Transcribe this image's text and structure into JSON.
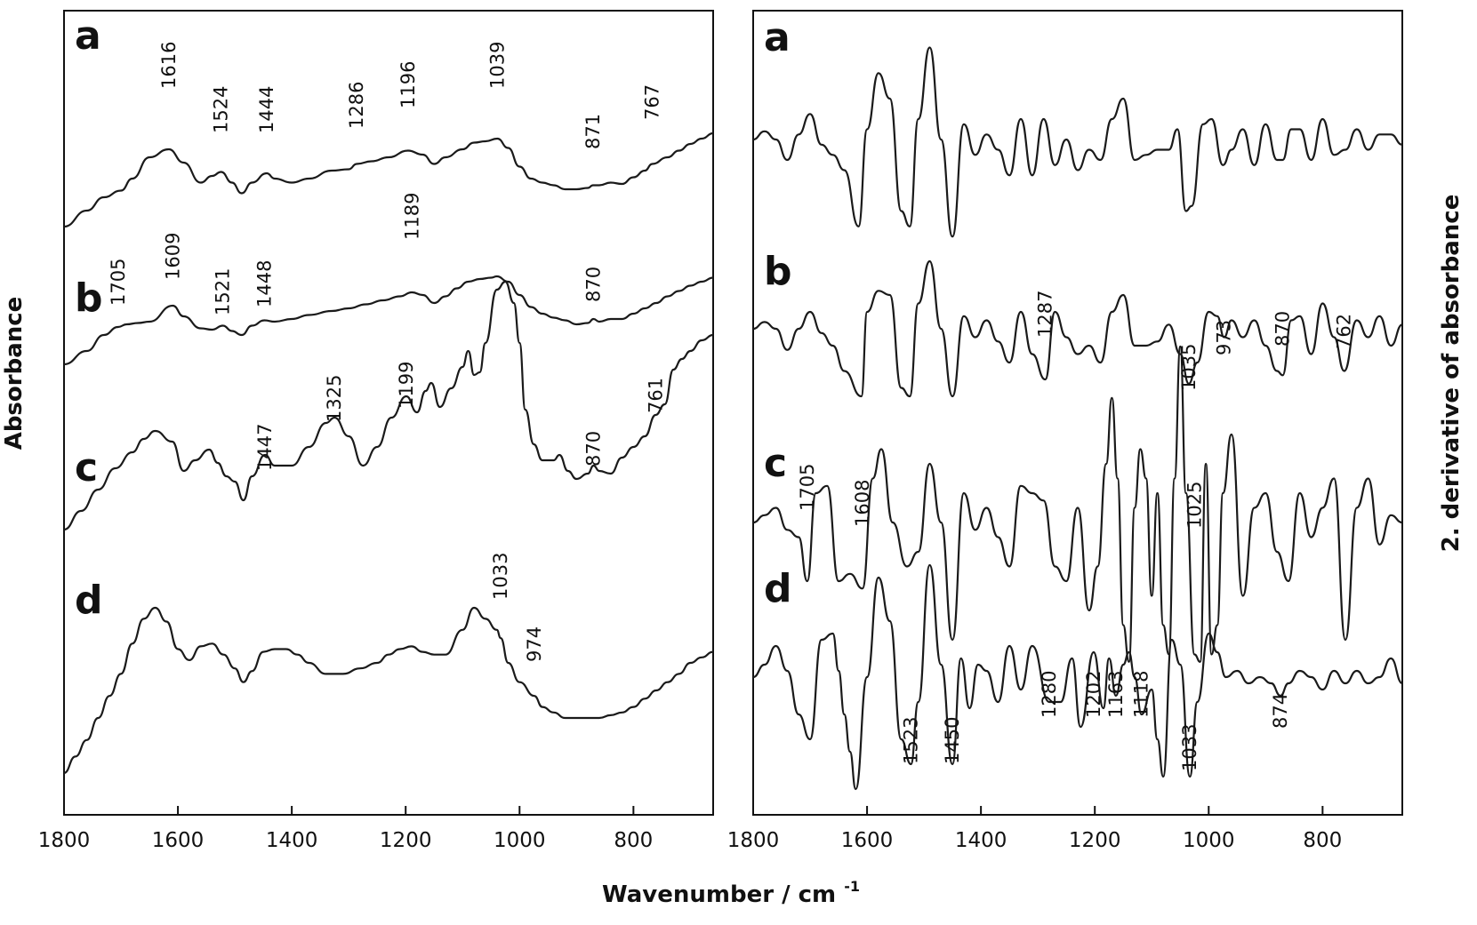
{
  "chart_data": [
    {
      "type": "line",
      "panel": "left",
      "ylabel": "Absorbance",
      "xlim": [
        1800,
        660
      ],
      "xticks": [
        1800,
        1600,
        1400,
        1200,
        1000,
        800
      ],
      "series": [
        {
          "name": "a",
          "peak_labels": [
            1616,
            1524,
            1444,
            1286,
            1196,
            1039,
            871,
            767
          ],
          "x": [
            1800,
            1760,
            1730,
            1700,
            1680,
            1650,
            1616,
            1590,
            1560,
            1540,
            1524,
            1505,
            1488,
            1470,
            1444,
            1430,
            1400,
            1370,
            1330,
            1300,
            1286,
            1260,
            1230,
            1196,
            1170,
            1150,
            1130,
            1100,
            1080,
            1060,
            1039,
            1020,
            1000,
            980,
            960,
            940,
            920,
            900,
            880,
            871,
            860,
            840,
            820,
            800,
            780,
            767,
            740,
            720,
            700,
            680,
            660
          ],
          "y": [
            0.0,
            0.12,
            0.22,
            0.27,
            0.36,
            0.52,
            0.58,
            0.48,
            0.33,
            0.38,
            0.41,
            0.33,
            0.25,
            0.33,
            0.4,
            0.36,
            0.33,
            0.36,
            0.42,
            0.43,
            0.47,
            0.49,
            0.52,
            0.57,
            0.54,
            0.47,
            0.52,
            0.58,
            0.63,
            0.64,
            0.66,
            0.59,
            0.45,
            0.36,
            0.33,
            0.31,
            0.28,
            0.28,
            0.29,
            0.31,
            0.31,
            0.33,
            0.32,
            0.37,
            0.42,
            0.47,
            0.52,
            0.57,
            0.62,
            0.66,
            0.7
          ]
        },
        {
          "name": "b",
          "peak_labels": [
            1705,
            1609,
            1521,
            1448,
            1189,
            870
          ],
          "x": [
            1800,
            1760,
            1730,
            1705,
            1690,
            1670,
            1650,
            1609,
            1590,
            1560,
            1540,
            1521,
            1505,
            1488,
            1470,
            1448,
            1430,
            1400,
            1370,
            1330,
            1300,
            1270,
            1240,
            1210,
            1189,
            1170,
            1150,
            1130,
            1110,
            1090,
            1070,
            1050,
            1040,
            1020,
            1000,
            980,
            960,
            940,
            920,
            900,
            880,
            870,
            860,
            840,
            820,
            800,
            780,
            760,
            740,
            720,
            700,
            680,
            660
          ],
          "y": [
            0.0,
            0.1,
            0.22,
            0.28,
            0.3,
            0.31,
            0.32,
            0.44,
            0.36,
            0.27,
            0.26,
            0.29,
            0.25,
            0.22,
            0.29,
            0.33,
            0.32,
            0.34,
            0.37,
            0.4,
            0.42,
            0.45,
            0.48,
            0.51,
            0.54,
            0.52,
            0.46,
            0.51,
            0.57,
            0.62,
            0.64,
            0.65,
            0.66,
            0.62,
            0.52,
            0.43,
            0.38,
            0.35,
            0.33,
            0.3,
            0.31,
            0.34,
            0.32,
            0.34,
            0.34,
            0.38,
            0.42,
            0.46,
            0.51,
            0.55,
            0.59,
            0.62,
            0.65
          ]
        },
        {
          "name": "c",
          "peak_labels": [
            1447,
            1325,
            1199,
            870,
            761
          ],
          "x": [
            1800,
            1770,
            1740,
            1710,
            1680,
            1660,
            1640,
            1610,
            1590,
            1570,
            1545,
            1530,
            1515,
            1500,
            1485,
            1470,
            1447,
            1430,
            1400,
            1370,
            1340,
            1325,
            1300,
            1275,
            1250,
            1225,
            1199,
            1180,
            1165,
            1155,
            1140,
            1120,
            1100,
            1090,
            1080,
            1070,
            1060,
            1040,
            1025,
            1010,
            1000,
            990,
            975,
            960,
            940,
            930,
            915,
            900,
            880,
            870,
            860,
            840,
            820,
            800,
            780,
            761,
            745,
            730,
            715,
            700,
            680,
            660
          ],
          "y": [
            0.0,
            0.07,
            0.15,
            0.23,
            0.29,
            0.34,
            0.37,
            0.33,
            0.22,
            0.26,
            0.3,
            0.25,
            0.2,
            0.18,
            0.11,
            0.2,
            0.28,
            0.24,
            0.24,
            0.31,
            0.4,
            0.42,
            0.35,
            0.24,
            0.31,
            0.42,
            0.5,
            0.44,
            0.52,
            0.55,
            0.46,
            0.53,
            0.61,
            0.67,
            0.58,
            0.59,
            0.7,
            0.9,
            0.93,
            0.85,
            0.7,
            0.45,
            0.32,
            0.26,
            0.26,
            0.28,
            0.22,
            0.19,
            0.21,
            0.24,
            0.22,
            0.21,
            0.27,
            0.31,
            0.35,
            0.43,
            0.47,
            0.6,
            0.64,
            0.67,
            0.71,
            0.73
          ]
        },
        {
          "name": "d",
          "peak_labels": [
            1033,
            974
          ],
          "x": [
            1800,
            1780,
            1760,
            1740,
            1720,
            1700,
            1680,
            1660,
            1640,
            1620,
            1600,
            1580,
            1560,
            1540,
            1520,
            1500,
            1485,
            1470,
            1450,
            1430,
            1410,
            1390,
            1370,
            1340,
            1310,
            1280,
            1250,
            1230,
            1210,
            1190,
            1170,
            1150,
            1130,
            1100,
            1080,
            1060,
            1040,
            1033,
            1020,
            1000,
            974,
            960,
            940,
            920,
            900,
            880,
            860,
            840,
            820,
            800,
            780,
            760,
            740,
            720,
            700,
            680,
            660
          ],
          "y": [
            0.0,
            0.06,
            0.12,
            0.2,
            0.28,
            0.36,
            0.47,
            0.56,
            0.6,
            0.55,
            0.45,
            0.41,
            0.46,
            0.47,
            0.43,
            0.38,
            0.33,
            0.37,
            0.44,
            0.45,
            0.45,
            0.43,
            0.4,
            0.36,
            0.36,
            0.38,
            0.4,
            0.43,
            0.45,
            0.46,
            0.44,
            0.43,
            0.43,
            0.52,
            0.6,
            0.56,
            0.52,
            0.49,
            0.4,
            0.33,
            0.28,
            0.24,
            0.22,
            0.2,
            0.2,
            0.2,
            0.2,
            0.21,
            0.22,
            0.24,
            0.27,
            0.3,
            0.33,
            0.36,
            0.4,
            0.42,
            0.44
          ]
        }
      ]
    },
    {
      "type": "line",
      "panel": "right",
      "ylabel": "2. derivative of absorbance",
      "xlim": [
        1800,
        660
      ],
      "xticks": [
        1800,
        1600,
        1400,
        1200,
        1000,
        800
      ],
      "series": [
        {
          "name": "a",
          "peak_labels": [],
          "x": [
            1800,
            1780,
            1760,
            1740,
            1720,
            1700,
            1680,
            1660,
            1640,
            1615,
            1600,
            1580,
            1560,
            1540,
            1525,
            1510,
            1490,
            1470,
            1450,
            1430,
            1410,
            1390,
            1370,
            1350,
            1330,
            1310,
            1290,
            1270,
            1250,
            1230,
            1210,
            1190,
            1170,
            1150,
            1130,
            1110,
            1090,
            1070,
            1055,
            1040,
            1030,
            1010,
            995,
            975,
            960,
            940,
            920,
            900,
            880,
            870,
            855,
            840,
            820,
            800,
            780,
            760,
            740,
            720,
            700,
            680,
            660
          ],
          "y": [
            0.0,
            0.08,
            0.0,
            -0.2,
            0.05,
            0.25,
            -0.05,
            -0.15,
            -0.3,
            -0.85,
            0.1,
            0.65,
            0.4,
            -0.7,
            -0.85,
            0.2,
            0.9,
            0.0,
            -0.95,
            0.15,
            -0.15,
            0.05,
            -0.1,
            -0.35,
            0.2,
            -0.35,
            0.2,
            -0.25,
            0.0,
            -0.3,
            -0.1,
            -0.2,
            0.2,
            0.4,
            -0.2,
            -0.15,
            -0.1,
            -0.1,
            0.1,
            -0.7,
            -0.65,
            0.15,
            0.2,
            -0.25,
            -0.1,
            0.1,
            -0.25,
            0.15,
            -0.2,
            -0.2,
            0.1,
            0.1,
            -0.2,
            0.2,
            -0.15,
            -0.1,
            0.1,
            -0.1,
            0.05,
            0.05,
            -0.05
          ]
        },
        {
          "name": "b",
          "peak_labels": [
            1287,
            1035,
            973,
            870,
            762
          ],
          "x": [
            1800,
            1780,
            1760,
            1740,
            1720,
            1700,
            1680,
            1660,
            1640,
            1610,
            1600,
            1580,
            1560,
            1540,
            1525,
            1510,
            1490,
            1470,
            1450,
            1430,
            1410,
            1390,
            1370,
            1350,
            1330,
            1310,
            1287,
            1270,
            1250,
            1230,
            1210,
            1190,
            1170,
            1150,
            1130,
            1110,
            1090,
            1070,
            1050,
            1035,
            1020,
            1000,
            985,
            973,
            960,
            940,
            920,
            900,
            880,
            870,
            855,
            840,
            820,
            800,
            780,
            762,
            740,
            720,
            700,
            680,
            660
          ],
          "y": [
            0.0,
            0.08,
            0.0,
            -0.25,
            0.0,
            0.2,
            -0.05,
            -0.2,
            -0.5,
            -0.8,
            0.2,
            0.45,
            0.4,
            -0.7,
            -0.8,
            0.3,
            0.8,
            0.0,
            -0.8,
            0.15,
            -0.1,
            0.1,
            -0.15,
            -0.4,
            0.2,
            -0.3,
            -0.6,
            0.2,
            -0.1,
            -0.3,
            -0.2,
            -0.4,
            0.2,
            0.4,
            -0.2,
            -0.2,
            -0.15,
            0.05,
            -0.3,
            -0.65,
            -0.4,
            0.2,
            0.15,
            -0.1,
            0.1,
            -0.1,
            0.1,
            -0.2,
            -0.5,
            -0.55,
            0.1,
            0.15,
            -0.3,
            0.3,
            -0.1,
            -0.5,
            0.1,
            -0.1,
            0.15,
            -0.2,
            0.05
          ]
        },
        {
          "name": "c",
          "peak_labels": [
            1705,
            1608,
            1025
          ],
          "x": [
            1800,
            1780,
            1760,
            1740,
            1720,
            1705,
            1690,
            1670,
            1650,
            1630,
            1608,
            1590,
            1575,
            1555,
            1530,
            1510,
            1490,
            1470,
            1450,
            1430,
            1410,
            1390,
            1370,
            1350,
            1330,
            1310,
            1290,
            1270,
            1250,
            1230,
            1210,
            1195,
            1180,
            1170,
            1160,
            1150,
            1140,
            1130,
            1120,
            1110,
            1100,
            1090,
            1080,
            1070,
            1060,
            1050,
            1040,
            1025,
            1015,
            1005,
            995,
            985,
            975,
            960,
            940,
            920,
            900,
            880,
            860,
            840,
            820,
            800,
            780,
            760,
            740,
            720,
            700,
            680,
            660
          ],
          "y": [
            0.0,
            0.05,
            0.1,
            -0.05,
            -0.1,
            -0.4,
            0.2,
            0.25,
            -0.4,
            -0.35,
            -0.45,
            0.3,
            0.5,
            0.0,
            -0.3,
            -0.2,
            0.4,
            0.0,
            -0.8,
            0.2,
            -0.05,
            0.1,
            -0.1,
            -0.3,
            0.25,
            0.2,
            0.15,
            -0.3,
            -0.4,
            0.1,
            -0.6,
            -0.3,
            0.4,
            0.85,
            0.3,
            -0.7,
            -0.95,
            0.1,
            0.5,
            0.3,
            -0.5,
            0.2,
            -0.7,
            -0.9,
            0.3,
            1.2,
            0.2,
            -0.9,
            -0.95,
            0.4,
            -0.9,
            -0.7,
            0.2,
            0.6,
            -0.5,
            0.1,
            0.2,
            -0.2,
            -0.4,
            0.2,
            -0.1,
            0.1,
            0.3,
            -0.8,
            0.1,
            0.3,
            -0.15,
            0.05,
            0.0
          ]
        },
        {
          "name": "d",
          "peak_labels": [
            1523,
            1450,
            1280,
            1202,
            1163,
            1118,
            1033,
            874
          ],
          "x": [
            1800,
            1780,
            1760,
            1740,
            1720,
            1700,
            1680,
            1660,
            1650,
            1640,
            1630,
            1620,
            1600,
            1580,
            1560,
            1540,
            1523,
            1510,
            1490,
            1470,
            1450,
            1435,
            1420,
            1405,
            1390,
            1370,
            1350,
            1330,
            1310,
            1280,
            1260,
            1240,
            1225,
            1202,
            1185,
            1175,
            1163,
            1150,
            1140,
            1130,
            1118,
            1100,
            1090,
            1080,
            1065,
            1050,
            1033,
            1020,
            1000,
            985,
            970,
            950,
            930,
            910,
            890,
            874,
            860,
            840,
            820,
            800,
            780,
            760,
            740,
            720,
            700,
            680,
            660
          ],
          "y": [
            0.0,
            0.1,
            0.25,
            0.05,
            -0.3,
            -0.5,
            0.3,
            0.35,
            0.05,
            -0.3,
            -0.6,
            -0.9,
            0.0,
            0.8,
            0.45,
            -0.5,
            -0.7,
            -0.2,
            0.9,
            0.1,
            -0.7,
            0.15,
            -0.25,
            0.1,
            0.05,
            -0.2,
            0.25,
            -0.1,
            0.25,
            -0.2,
            -0.2,
            0.15,
            -0.4,
            0.2,
            -0.25,
            0.15,
            -0.15,
            0.1,
            0.2,
            0.0,
            -0.3,
            -0.1,
            -0.5,
            -0.8,
            0.3,
            0.1,
            -0.8,
            -0.2,
            0.35,
            0.2,
            0.0,
            0.05,
            -0.05,
            0.0,
            -0.05,
            -0.15,
            -0.05,
            0.05,
            0.0,
            -0.1,
            0.05,
            -0.05,
            0.05,
            -0.05,
            0.0,
            0.15,
            -0.05
          ]
        }
      ]
    }
  ],
  "xlabel": "Wavenumber / cm",
  "xlabel_superscript": "-1"
}
